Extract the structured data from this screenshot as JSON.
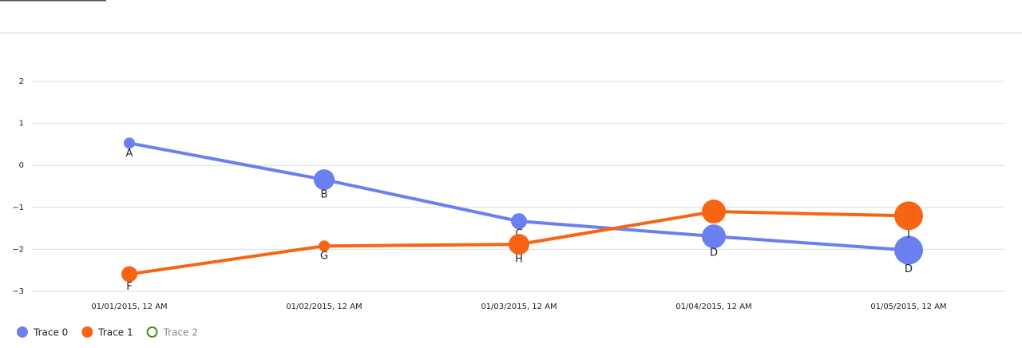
{
  "chart_data": {
    "type": "line",
    "categories": [
      "01/01/2015, 12 AM",
      "01/02/2015, 12 AM",
      "01/03/2015, 12 AM",
      "01/04/2015, 12 AM",
      "01/05/2015, 12 AM"
    ],
    "series": [
      {
        "name": "Trace 0",
        "color": "#6a7ff0",
        "values": [
          0.53,
          -0.34,
          -1.33,
          -1.69,
          -2.02
        ],
        "sizes": [
          14,
          26,
          20,
          30,
          36
        ],
        "text": [
          "A",
          "B",
          "C",
          "D",
          "D"
        ]
      },
      {
        "name": "Trace 1",
        "color": "#f76414",
        "values": [
          -2.59,
          -1.92,
          -1.88,
          -1.1,
          -1.2
        ],
        "sizes": [
          20,
          14,
          26,
          30,
          36
        ],
        "text": [
          "F",
          "G",
          "H",
          null,
          "I"
        ]
      },
      {
        "name": "Trace 2",
        "color": "#4a8a2a",
        "values": [
          null,
          null,
          null,
          null,
          null
        ],
        "hidden": true
      }
    ],
    "ylim": [
      -3,
      2
    ],
    "yticks": [
      {
        "value": -3,
        "label": "−3"
      },
      {
        "value": -2,
        "label": "−2"
      },
      {
        "value": -1,
        "label": "−1"
      },
      0,
      1,
      2
    ],
    "grid": true,
    "legend": "bottom-left"
  }
}
